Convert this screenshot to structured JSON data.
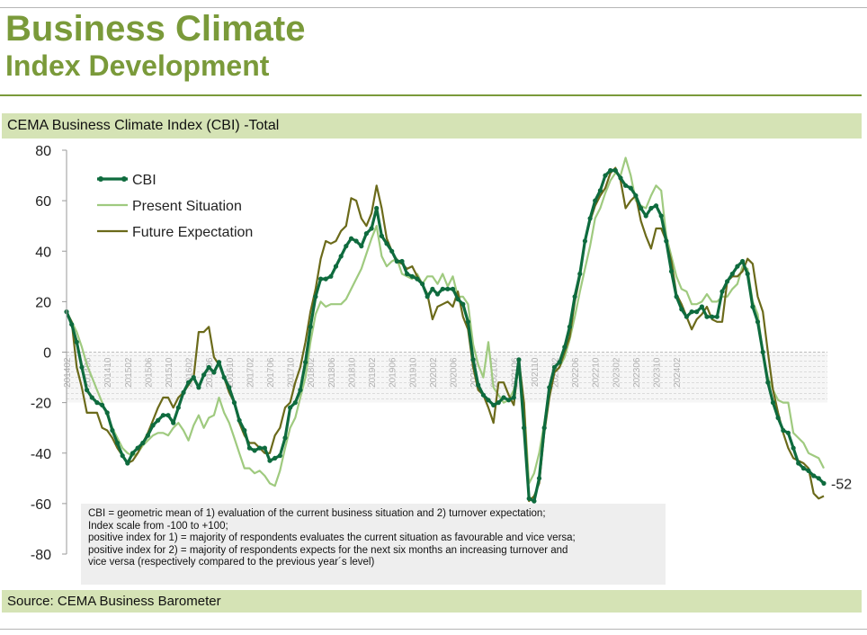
{
  "header": {
    "title": "Business Climate",
    "subtitle": "Index Development"
  },
  "chart_title": "CEMA Business Climate Index (CBI) -Total",
  "source": "Source: CEMA Business Barometer",
  "note_lines": [
    "CBI = geometric mean of 1) evaluation of the current business situation and 2) turnover expectation;",
    "Index scale from -100 to +100;",
    "positive index for 1) = majority of respondents evaluates the current situation as favourable and vice versa;",
    "positive index for 2) = majority of respondents expects for the next six months an increasing turnover and",
    "vice versa (respectively compared to the previous year´s level)"
  ],
  "colors": {
    "cbi": "#0e6b3e",
    "present": "#9fca7f",
    "future": "#6b6a1a",
    "header": "#7a9a3a",
    "band": "#d5e3b5"
  },
  "chart_data": {
    "type": "line",
    "y_range": [
      -80,
      80
    ],
    "y_ticks": [
      80,
      60,
      40,
      20,
      0,
      -20,
      -40,
      -60,
      -80
    ],
    "x_tick_labels": [
      "201402",
      "201406",
      "201410",
      "201502",
      "201506",
      "201510",
      "201602",
      "201606",
      "201610",
      "201702",
      "201706",
      "201710",
      "201802",
      "201806",
      "201810",
      "201902",
      "201906",
      "201910",
      "202002",
      "202006",
      "202010",
      "202102",
      "202106",
      "202110",
      "202202",
      "202206",
      "202210",
      "202302",
      "202306",
      "202310",
      "202402"
    ],
    "x_tick_label_start": "201402",
    "x_tick_step_months": 4,
    "start_month": "201402",
    "last_value_label": "-52",
    "series": [
      {
        "name": "CBI",
        "values": [
          16,
          11,
          4,
          -6,
          -15,
          -18,
          -20,
          -21,
          -24,
          -31,
          -36,
          -41,
          -44,
          -40,
          -38,
          -36,
          -33,
          -29,
          -27,
          -25,
          -25,
          -28,
          -22,
          -16,
          -12,
          -10,
          -14,
          -9,
          -6,
          -8,
          -4,
          -10,
          -14,
          -20,
          -27,
          -31,
          -38,
          -39,
          -38,
          -38,
          -43,
          -42,
          -41,
          -34,
          -22,
          -20,
          -15,
          -4,
          10,
          22,
          29,
          29,
          30,
          34,
          38,
          42,
          45,
          44,
          42,
          47,
          49,
          57,
          46,
          43,
          40,
          36,
          36,
          31,
          30,
          29,
          27,
          22,
          25,
          23,
          25,
          25,
          25,
          21,
          19,
          12,
          -3,
          -13,
          -17,
          -19,
          -21,
          -20,
          -18,
          -19,
          -18,
          -3,
          -30,
          -58,
          -59,
          -50,
          -30,
          -14,
          -6,
          -4,
          2,
          10,
          22,
          31,
          44,
          53,
          60,
          64,
          70,
          72,
          72,
          69,
          66,
          65,
          62,
          57,
          54,
          57,
          58,
          54,
          44,
          32,
          22,
          17,
          14,
          16,
          16,
          18,
          14,
          14,
          14,
          24,
          28,
          31,
          34,
          36,
          31,
          18,
          12,
          0,
          -12,
          -20,
          -26,
          -31,
          -32,
          -38,
          -44,
          -46,
          -47,
          -49,
          -50,
          -52
        ]
      },
      {
        "name": "Present Situation",
        "values": [
          16,
          12,
          8,
          2,
          -5,
          -10,
          -15,
          -20,
          -25,
          -30,
          -34,
          -38,
          -40,
          -41,
          -40,
          -37,
          -35,
          -33,
          -32,
          -32,
          -33,
          -30,
          -28,
          -31,
          -35,
          -29,
          -25,
          -30,
          -26,
          -25,
          -18,
          -24,
          -28,
          -34,
          -40,
          -46,
          -46,
          -48,
          -47,
          -49,
          -52,
          -53,
          -47,
          -38,
          -30,
          -26,
          -18,
          -10,
          4,
          15,
          20,
          18,
          19,
          19,
          19,
          21,
          25,
          29,
          33,
          39,
          45,
          50,
          38,
          34,
          36,
          37,
          31,
          30,
          29,
          31,
          27,
          30,
          30,
          27,
          31,
          26,
          30,
          22,
          22,
          19,
          3,
          -5,
          -10,
          4,
          -14,
          -17,
          -20,
          -19,
          -15,
          -7,
          -20,
          -52,
          -48,
          -40,
          -28,
          -15,
          -8,
          -6,
          -2,
          5,
          14,
          24,
          33,
          42,
          53,
          57,
          63,
          68,
          71,
          70,
          77,
          70,
          60,
          58,
          57,
          62,
          66,
          64,
          46,
          38,
          30,
          25,
          24,
          19,
          19,
          20,
          23,
          20,
          20,
          22,
          22,
          25,
          27,
          34,
          33,
          20,
          15,
          0,
          -10,
          -15,
          -19,
          -20,
          -20,
          -32,
          -34,
          -36,
          -40,
          -41,
          -42,
          -46
        ]
      },
      {
        "name": "Future Expectation",
        "values": [
          16,
          12,
          -6,
          -14,
          -24,
          -24,
          -24,
          -30,
          -31,
          -34,
          -38,
          -41,
          -44,
          -43,
          -40,
          -36,
          -32,
          -27,
          -22,
          -18,
          -18,
          -22,
          -18,
          -16,
          -13,
          -10,
          8,
          8,
          10,
          -2,
          -5,
          -10,
          -16,
          -20,
          -28,
          -33,
          -36,
          -36,
          -38,
          -40,
          -40,
          -33,
          -30,
          -22,
          -20,
          -12,
          -6,
          4,
          16,
          25,
          37,
          44,
          43,
          44,
          48,
          50,
          61,
          60,
          53,
          50,
          55,
          66,
          57,
          45,
          40,
          36,
          35,
          33,
          34,
          30,
          27,
          23,
          13,
          18,
          19,
          20,
          18,
          24,
          14,
          9,
          -6,
          -15,
          -17,
          -22,
          -28,
          -12,
          -12,
          -17,
          -21,
          -3,
          -20,
          -59,
          -57,
          -52,
          -32,
          -18,
          -8,
          -6,
          0,
          6,
          20,
          30,
          44,
          52,
          58,
          62,
          65,
          71,
          73,
          68,
          57,
          60,
          62,
          52,
          46,
          41,
          49,
          49,
          44,
          36,
          23,
          19,
          14,
          9,
          13,
          15,
          18,
          13,
          12,
          12,
          28,
          30,
          30,
          32,
          37,
          35,
          22,
          16,
          0,
          -15,
          -24,
          -32,
          -38,
          -42,
          -43,
          -44,
          -46,
          -56,
          -58,
          -57
        ]
      }
    ]
  }
}
